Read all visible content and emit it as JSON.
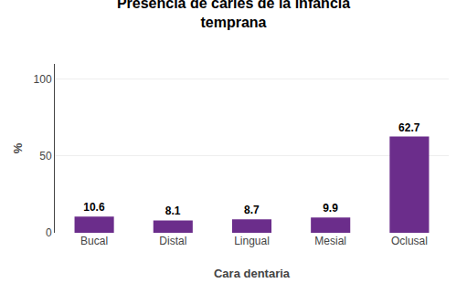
{
  "chart_data": {
    "type": "bar",
    "title": "Presencia de caries de la infancia\ntemprana",
    "categories": [
      "Bucal",
      "Distal",
      "Lingual",
      "Mesial",
      "Oclusal"
    ],
    "values": [
      10.6,
      8.1,
      8.7,
      9.9,
      62.7
    ],
    "color": "#6B2D8B",
    "xlabel": "Cara dentaria",
    "ylabel": "%",
    "ylim": [
      0,
      110
    ],
    "yticks": [
      0,
      50,
      100
    ],
    "grid": true,
    "data_labels": true
  }
}
